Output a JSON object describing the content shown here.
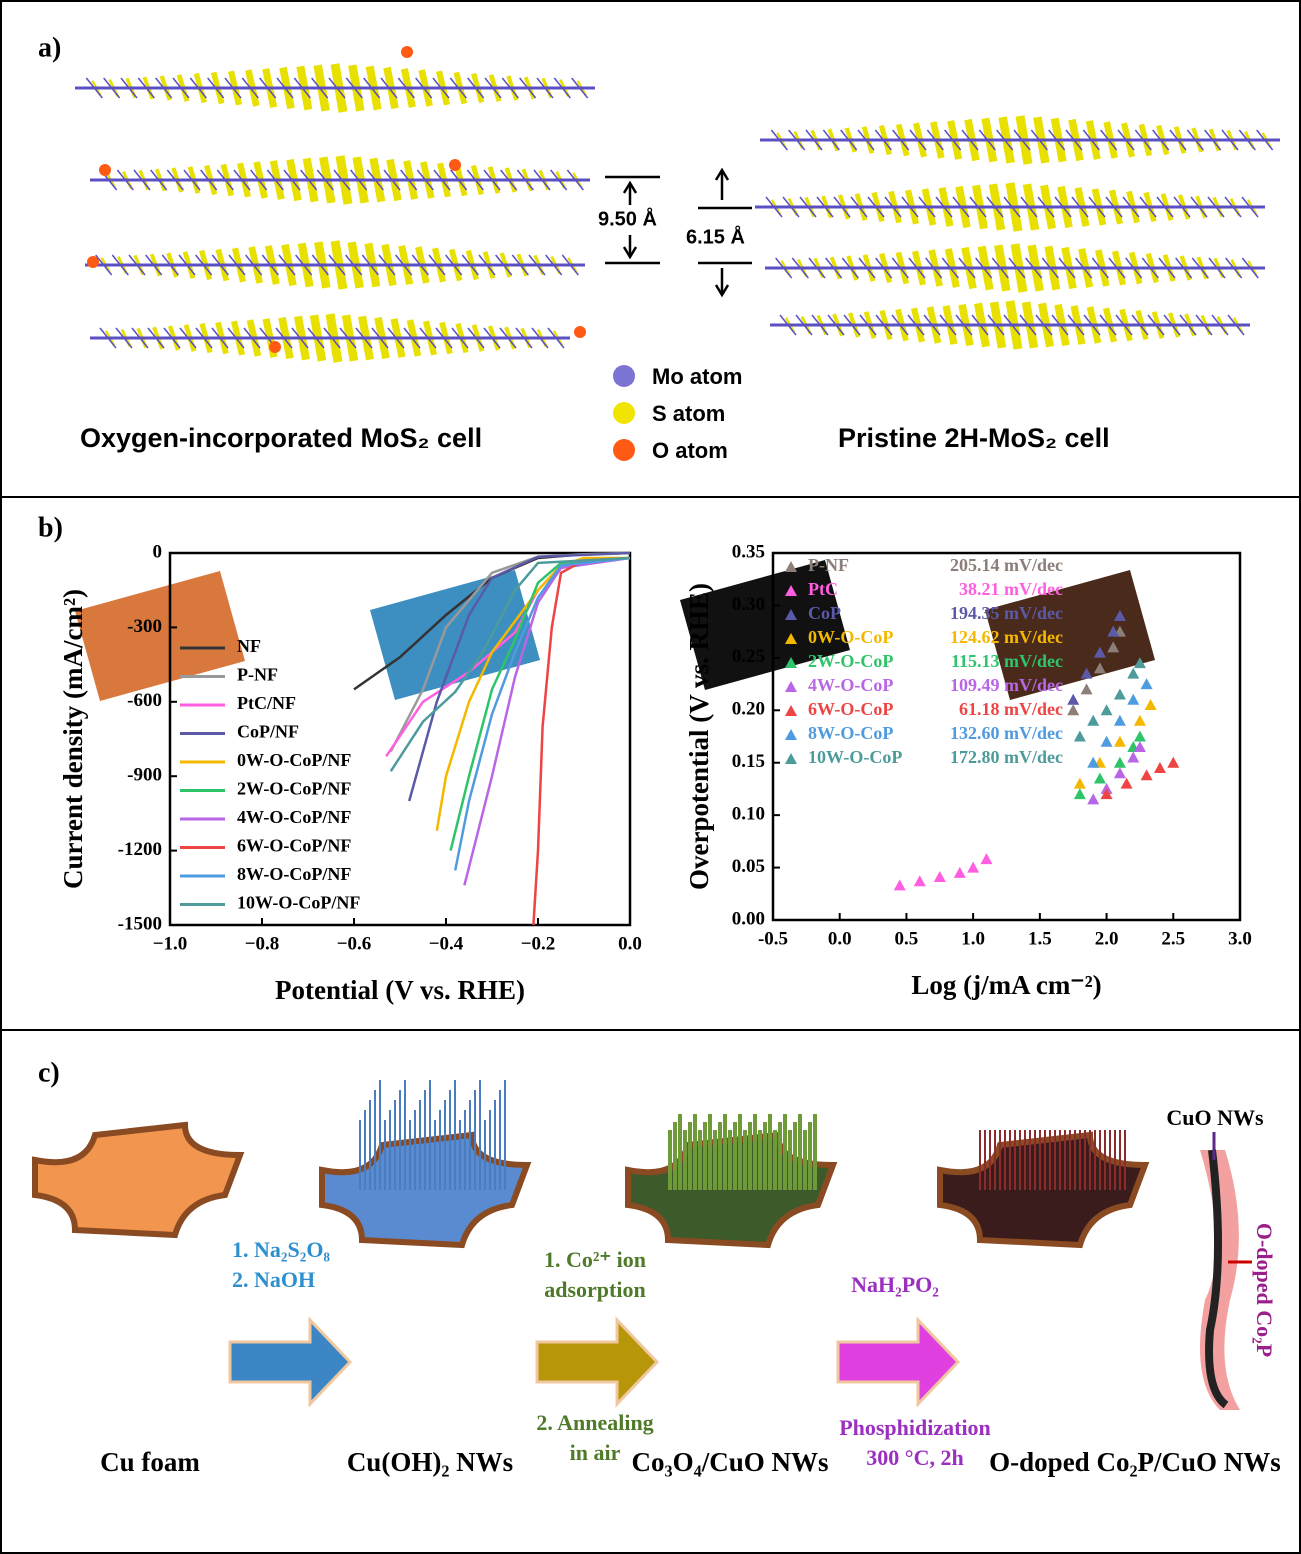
{
  "panel_a": {
    "label": "a)",
    "spacing_left": "9.50 Å",
    "spacing_right": "6.15 Å",
    "legend": [
      "Mo atom",
      "S atom",
      "O atom"
    ],
    "caption_left": "Oxygen-incorporated MoS₂ cell",
    "caption_right": "Pristine 2H-MoS₂ cell"
  },
  "panel_b": {
    "label": "b)"
  },
  "chart_data": [
    {
      "type": "line",
      "xlabel": "Potential (V vs. RHE)",
      "ylabel": "Current density (mA/cm²)",
      "xlim": [
        -1.0,
        0.0
      ],
      "ylim": [
        -1500,
        0
      ],
      "xticks": [
        {
          "value": -1.0,
          "label": "−1.0"
        },
        {
          "value": -0.8,
          "label": "−0.8"
        },
        {
          "value": -0.6,
          "label": "−0.6"
        },
        {
          "value": -0.4,
          "label": "−0.4"
        },
        {
          "value": -0.2,
          "label": "−0.2"
        },
        {
          "value": 0.0,
          "label": "0.0"
        }
      ],
      "yticks": [
        0,
        -300,
        -600,
        -900,
        -1200,
        -1500
      ],
      "series": [
        {
          "name": "NF",
          "color": "#333333",
          "x": [
            -0.6,
            -0.5,
            -0.4,
            -0.3,
            -0.2,
            -0.1,
            0.0
          ],
          "values": [
            -550,
            -420,
            -250,
            -100,
            -20,
            -5,
            0
          ]
        },
        {
          "name": "P-NF",
          "color": "#999999",
          "x": [
            -0.52,
            -0.45,
            -0.4,
            -0.3,
            -0.2,
            -0.1,
            0.0
          ],
          "values": [
            -800,
            -550,
            -300,
            -80,
            -15,
            -5,
            0
          ]
        },
        {
          "name": "PtC/NF",
          "color": "#ff5ee0",
          "x": [
            -0.53,
            -0.45,
            -0.35,
            -0.25,
            -0.2,
            -0.15,
            -0.1,
            0.0
          ],
          "values": [
            -820,
            -600,
            -480,
            -320,
            -150,
            -50,
            -30,
            -20
          ]
        },
        {
          "name": "CoP/NF",
          "color": "#5a5aa8",
          "x": [
            -0.48,
            -0.42,
            -0.35,
            -0.3,
            -0.2,
            0.0
          ],
          "values": [
            -1000,
            -600,
            -250,
            -100,
            -15,
            0
          ]
        },
        {
          "name": "0W-O-CoP/NF",
          "color": "#f5b800",
          "x": [
            -0.42,
            -0.4,
            -0.35,
            -0.3,
            -0.2,
            -0.15,
            -0.1,
            0.0
          ],
          "values": [
            -1120,
            -900,
            -600,
            -400,
            -150,
            -50,
            -20,
            -20
          ]
        },
        {
          "name": "2W-O-CoP/NF",
          "color": "#2ec46a",
          "x": [
            -0.39,
            -0.35,
            -0.3,
            -0.25,
            -0.2,
            -0.15,
            0.0
          ],
          "values": [
            -1200,
            -900,
            -550,
            -350,
            -120,
            -40,
            -20
          ]
        },
        {
          "name": "4W-O-CoP/NF",
          "color": "#b866e6",
          "x": [
            -0.36,
            -0.3,
            -0.25,
            -0.2,
            -0.15,
            0.0
          ],
          "values": [
            -1340,
            -900,
            -500,
            -200,
            -60,
            -20
          ]
        },
        {
          "name": "6W-O-CoP/NF",
          "color": "#ee4444",
          "x": [
            -0.21,
            -0.2,
            -0.19,
            -0.17,
            -0.15,
            -0.1,
            0.0
          ],
          "values": [
            -1500,
            -1200,
            -700,
            -300,
            -80,
            -30,
            -20
          ]
        },
        {
          "name": "8W-O-CoP/NF",
          "color": "#4f9be0",
          "x": [
            -0.38,
            -0.35,
            -0.3,
            -0.25,
            -0.2,
            -0.15,
            0.0
          ],
          "values": [
            -1280,
            -1000,
            -650,
            -400,
            -180,
            -50,
            -20
          ]
        },
        {
          "name": "10W-O-CoP/NF",
          "color": "#4d9b9b",
          "x": [
            -0.52,
            -0.45,
            -0.38,
            -0.32,
            -0.25,
            -0.2,
            0.0
          ],
          "values": [
            -880,
            -680,
            -560,
            -400,
            -150,
            -40,
            -20
          ]
        }
      ]
    },
    {
      "type": "scatter",
      "xlabel": "Log (j/mA cm⁻²)",
      "ylabel": "Overpotential (V vs. RHE)",
      "xlim": [
        -0.5,
        3.0
      ],
      "ylim": [
        0.0,
        0.35
      ],
      "xticks": [
        -0.5,
        {
          "value": 0.0,
          "label": "0.0"
        },
        0.5,
        {
          "value": 1.0,
          "label": "1.0"
        },
        1.5,
        {
          "value": 2.0,
          "label": "2.0"
        },
        2.5,
        {
          "value": 3.0,
          "label": "3.0"
        }
      ],
      "yticks": [
        {
          "value": 0.0,
          "label": "0.00"
        },
        0.05,
        {
          "value": 0.1,
          "label": "0.10"
        },
        0.15,
        {
          "value": 0.2,
          "label": "0.20"
        },
        0.25,
        {
          "value": 0.3,
          "label": "0.30"
        },
        0.35
      ],
      "series": [
        {
          "name": "P-NF",
          "tafel_slope": "205.14 mV/dec",
          "color": "#8c7e78",
          "x": [
            1.75,
            1.85,
            1.95,
            2.05,
            2.1
          ],
          "values": [
            0.2,
            0.22,
            0.24,
            0.26,
            0.275
          ]
        },
        {
          "name": "PtC",
          "tafel_slope": "38.21 mV/dec",
          "color": "#ff5ee0",
          "x": [
            0.45,
            0.6,
            0.75,
            0.9,
            1.0,
            1.1
          ],
          "values": [
            0.033,
            0.037,
            0.041,
            0.045,
            0.05,
            0.058
          ]
        },
        {
          "name": "CoP",
          "tafel_slope": "194.35 mV/dec",
          "color": "#5a5aa8",
          "x": [
            1.75,
            1.85,
            1.95,
            2.05,
            2.1
          ],
          "values": [
            0.21,
            0.235,
            0.255,
            0.275,
            0.29
          ]
        },
        {
          "name": "0W-O-CoP",
          "tafel_slope": "124.62 mV/dec",
          "color": "#f5b800",
          "x": [
            1.8,
            1.95,
            2.1,
            2.25,
            2.33
          ],
          "values": [
            0.13,
            0.15,
            0.17,
            0.19,
            0.205
          ]
        },
        {
          "name": "2W-O-CoP",
          "tafel_slope": "115.13 mV/dec",
          "color": "#2ec46a",
          "x": [
            1.8,
            1.95,
            2.1,
            2.2,
            2.25
          ],
          "values": [
            0.12,
            0.135,
            0.15,
            0.165,
            0.175
          ]
        },
        {
          "name": "4W-O-CoP",
          "tafel_slope": "109.49 mV/dec",
          "color": "#b866e6",
          "x": [
            1.9,
            2.0,
            2.1,
            2.2,
            2.25
          ],
          "values": [
            0.115,
            0.125,
            0.14,
            0.155,
            0.165
          ]
        },
        {
          "name": "6W-O-CoP",
          "tafel_slope": "61.18 mV/dec",
          "color": "#ee4444",
          "x": [
            2.0,
            2.15,
            2.3,
            2.4,
            2.5
          ],
          "values": [
            0.12,
            0.13,
            0.138,
            0.145,
            0.15
          ]
        },
        {
          "name": "8W-O-CoP",
          "tafel_slope": "132.60 mV/dec",
          "color": "#4f9be0",
          "x": [
            1.9,
            2.0,
            2.1,
            2.2,
            2.3
          ],
          "values": [
            0.15,
            0.17,
            0.19,
            0.21,
            0.225
          ]
        },
        {
          "name": "10W-O-CoP",
          "tafel_slope": "172.80 mV/dec",
          "color": "#4d9b9b",
          "x": [
            1.8,
            1.9,
            2.0,
            2.1,
            2.2,
            2.25
          ],
          "values": [
            0.175,
            0.19,
            0.2,
            0.215,
            0.235,
            0.245
          ]
        }
      ]
    }
  ],
  "panel_c": {
    "label": "c)",
    "stages": [
      "Cu foam",
      "Cu(OH)₂ NWs",
      "Co₃O₄/CuO NWs",
      "O-doped Co₂P/CuO NWs"
    ],
    "step1": [
      "1. Na₂S₂O₈",
      "2. NaOH"
    ],
    "step2": [
      "1. Co²⁺ ion",
      "adsorption",
      "2. Annealing",
      "in air"
    ],
    "step3": [
      "NaH₂PO₂",
      "Phosphidization",
      "300 °C, 2h"
    ],
    "inset": [
      "CuO NWs",
      "O-doped Co₂P"
    ]
  }
}
